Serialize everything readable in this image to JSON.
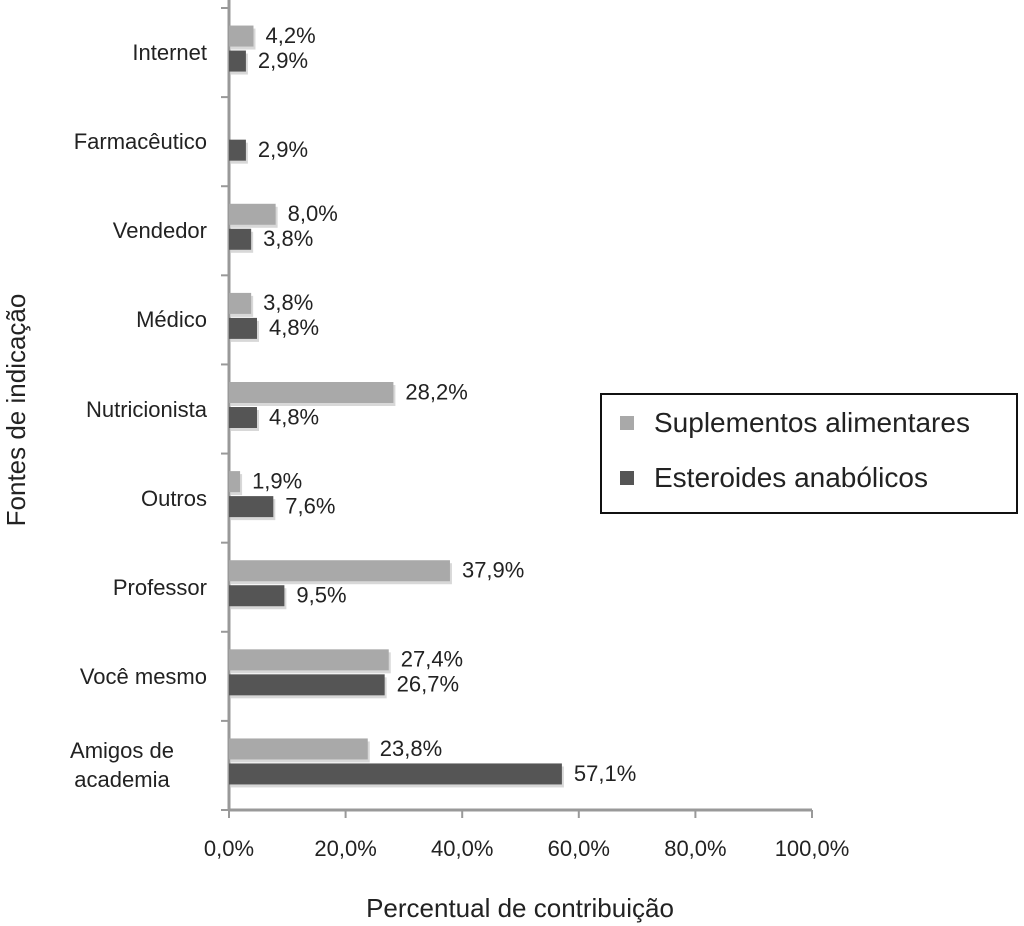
{
  "chart_data": {
    "type": "hbar",
    "x_label": "Percentual de contribuição",
    "y_label": "Fontes de indicação",
    "categories": [
      "Internet",
      "Farmacêutico",
      "Vendedor",
      "Médico",
      "Nutricionista",
      "Outros",
      "Professor",
      "Você mesmo",
      "Amigos de academia"
    ],
    "series": [
      {
        "name": "Suplementos alimentares",
        "color": "#a9a9a9",
        "values": [
          4.2,
          null,
          8.0,
          3.8,
          28.2,
          1.9,
          37.9,
          27.4,
          23.8
        ],
        "value_labels": [
          "4,2%",
          null,
          "8,0%",
          "3,8%",
          "28,2%",
          "1,9%",
          "37,9%",
          "27,4%",
          "23,8%"
        ]
      },
      {
        "name": "Esteroides anabólicos",
        "color": "#555555",
        "values": [
          2.9,
          2.9,
          3.8,
          4.8,
          4.8,
          7.6,
          9.5,
          26.7,
          57.1
        ],
        "value_labels": [
          "2,9%",
          "2,9%",
          "3,8%",
          "4,8%",
          "4,8%",
          "7,6%",
          "9,5%",
          "26,7%",
          "57,1%"
        ]
      }
    ],
    "xlim": [
      0,
      100
    ],
    "xticks": [
      {
        "value": 0,
        "label": "0,0%"
      },
      {
        "value": 20,
        "label": "20,0%"
      },
      {
        "value": 40,
        "label": "40,0%"
      },
      {
        "value": 60,
        "label": "60,0%"
      },
      {
        "value": 80,
        "label": "80,0%"
      },
      {
        "value": 100,
        "label": "100,0%"
      }
    ],
    "legend": "right"
  }
}
